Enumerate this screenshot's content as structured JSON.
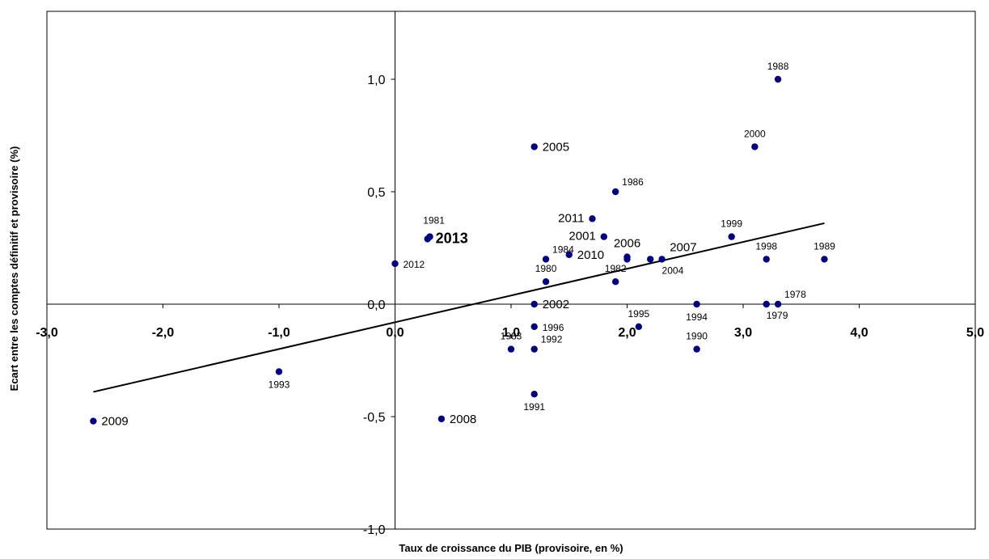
{
  "chart_data": {
    "type": "scatter",
    "title": "",
    "xlabel": "Taux de croissance du PIB (provisoire, en %)",
    "ylabel": "Ecart entre les comptes définitif et provisoire (%)",
    "xlim": [
      -3.0,
      5.0
    ],
    "ylim": [
      -1.0,
      1.3
    ],
    "x_ticks": [
      -3.0,
      -2.0,
      -1.0,
      0.0,
      1.0,
      2.0,
      3.0,
      4.0,
      5.0
    ],
    "x_tick_labels": [
      "-3,0",
      "-2,0",
      "-1,0",
      "0,0",
      "1,0",
      "2,0",
      "3,0",
      "4,0",
      "5,0"
    ],
    "y_ticks": [
      -1.0,
      -0.5,
      0.0,
      0.5,
      1.0
    ],
    "y_tick_labels": [
      "-1,0",
      "-0,5",
      "0,0",
      "0,5",
      "1,0"
    ],
    "grid": false,
    "marker_color": "#000080",
    "highlight_color": "#ff0000",
    "trendline": {
      "x": [
        -2.6,
        3.7
      ],
      "y": [
        -0.39,
        0.36
      ],
      "color": "#000000"
    },
    "points": [
      {
        "label": "1978",
        "x": 3.3,
        "y": 0.0,
        "pos": "ne",
        "size": "small"
      },
      {
        "label": "1979",
        "x": 3.2,
        "y": 0.0,
        "pos": "se",
        "size": "small"
      },
      {
        "label": "1980",
        "x": 1.3,
        "y": 0.1,
        "pos": "n",
        "size": "small"
      },
      {
        "label": "1981",
        "x": 0.3,
        "y": 0.3,
        "pos": "nw",
        "size": "small"
      },
      {
        "label": "1982",
        "x": 1.9,
        "y": 0.1,
        "pos": "n",
        "size": "small"
      },
      {
        "label": "1983",
        "x": 1.0,
        "y": -0.2,
        "pos": "n",
        "size": "small"
      },
      {
        "label": "1984",
        "x": 1.3,
        "y": 0.2,
        "pos": "ne",
        "size": "small"
      },
      {
        "label": "1986",
        "x": 1.9,
        "y": 0.5,
        "pos": "ne",
        "size": "small"
      },
      {
        "label": "1988",
        "x": 3.3,
        "y": 1.0,
        "pos": "n",
        "size": "small"
      },
      {
        "label": "1989",
        "x": 3.7,
        "y": 0.2,
        "pos": "n",
        "size": "small"
      },
      {
        "label": "1990",
        "x": 2.6,
        "y": -0.2,
        "pos": "n",
        "size": "small"
      },
      {
        "label": "1991",
        "x": 1.2,
        "y": -0.4,
        "pos": "s",
        "size": "small"
      },
      {
        "label": "1992",
        "x": 1.2,
        "y": -0.2,
        "pos": "ne",
        "size": "small"
      },
      {
        "label": "1993",
        "x": -1.0,
        "y": -0.3,
        "pos": "s",
        "size": "small"
      },
      {
        "label": "1994",
        "x": 2.6,
        "y": 0.0,
        "pos": "s",
        "size": "small"
      },
      {
        "label": "1995",
        "x": 2.1,
        "y": -0.1,
        "pos": "n",
        "size": "small"
      },
      {
        "label": "1996",
        "x": 1.2,
        "y": -0.1,
        "pos": "e",
        "size": "small"
      },
      {
        "label": "1998",
        "x": 3.2,
        "y": 0.2,
        "pos": "n",
        "size": "small"
      },
      {
        "label": "1999",
        "x": 2.9,
        "y": 0.3,
        "pos": "n",
        "size": "small"
      },
      {
        "label": "2000",
        "x": 3.1,
        "y": 0.7,
        "pos": "n",
        "size": "small"
      },
      {
        "label": "2001",
        "x": 1.8,
        "y": 0.3,
        "pos": "w",
        "size": "medium"
      },
      {
        "label": "2002",
        "x": 1.2,
        "y": 0.0,
        "pos": "e",
        "size": "medium"
      },
      {
        "label": "2004",
        "x": 2.3,
        "y": 0.2,
        "pos": "se",
        "size": "small"
      },
      {
        "label": "2005",
        "x": 1.2,
        "y": 0.7,
        "pos": "e",
        "size": "medium"
      },
      {
        "label": "2006",
        "x": 2.0,
        "y": 0.21,
        "pos": "n",
        "size": "medium"
      },
      {
        "label": "2007",
        "x": 2.2,
        "y": 0.2,
        "pos": "ne2",
        "size": "medium"
      },
      {
        "label": "2008",
        "x": 0.4,
        "y": -0.51,
        "pos": "e",
        "size": "medium"
      },
      {
        "label": "2009",
        "x": -2.6,
        "y": -0.52,
        "pos": "e",
        "size": "medium"
      },
      {
        "label": "2010",
        "x": 1.5,
        "y": 0.22,
        "pos": "e",
        "size": "medium"
      },
      {
        "label": "2011",
        "x": 1.7,
        "y": 0.38,
        "pos": "w",
        "size": "medium"
      },
      {
        "label": "2012",
        "x": 0.0,
        "y": 0.18,
        "pos": "e",
        "size": "small"
      },
      {
        "label": "2013",
        "x": 0.28,
        "y": 0.29,
        "pos": "e",
        "size": "highlight"
      },
      {
        "label": "",
        "x": 2.0,
        "y": 0.2,
        "pos": "none",
        "size": "small"
      }
    ]
  }
}
